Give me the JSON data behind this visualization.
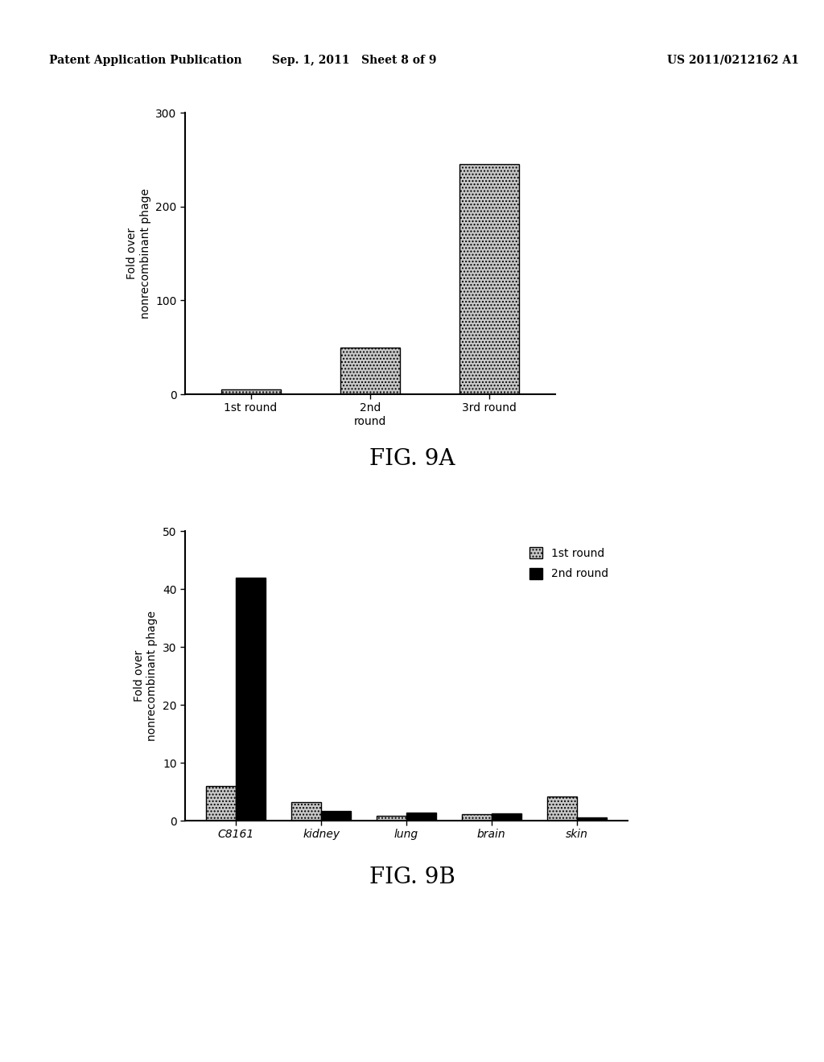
{
  "fig9a": {
    "categories": [
      "1st round",
      "2nd\nround",
      "3rd round"
    ],
    "values": [
      5,
      50,
      245
    ],
    "bar_color": "#c8c8c8",
    "bar_hatch": "....",
    "ylabel": "Fold over\nnonrecombinant phage",
    "ylim": [
      0,
      300
    ],
    "yticks": [
      0,
      100,
      200,
      300
    ],
    "fig_label": "FIG. 9A"
  },
  "fig9b": {
    "categories": [
      "C8161",
      "kidney",
      "lung",
      "brain",
      "skin"
    ],
    "values_1st": [
      6,
      3.2,
      0.8,
      1.1,
      4.2
    ],
    "values_2nd": [
      42,
      1.7,
      1.4,
      1.3,
      0.5
    ],
    "color_1st": "#c8c8c8",
    "hatch_1st": "....",
    "color_2nd": "#000000",
    "hatch_2nd": "",
    "ylabel": "Fold over\nnonrecombinant phage",
    "ylim": [
      0,
      50
    ],
    "yticks": [
      0,
      10,
      20,
      30,
      40,
      50
    ],
    "legend_1st": "1st round",
    "legend_2nd": "2nd round",
    "fig_label": "FIG. 9B"
  },
  "header_left": "Patent Application Publication",
  "header_mid": "Sep. 1, 2011   Sheet 8 of 9",
  "header_right": "US 2011/0212162 A1",
  "bg_color": "#ffffff",
  "text_color": "#000000",
  "font_size_axis": 10,
  "font_size_tick": 10,
  "font_size_fig_label": 20,
  "font_size_header": 10
}
